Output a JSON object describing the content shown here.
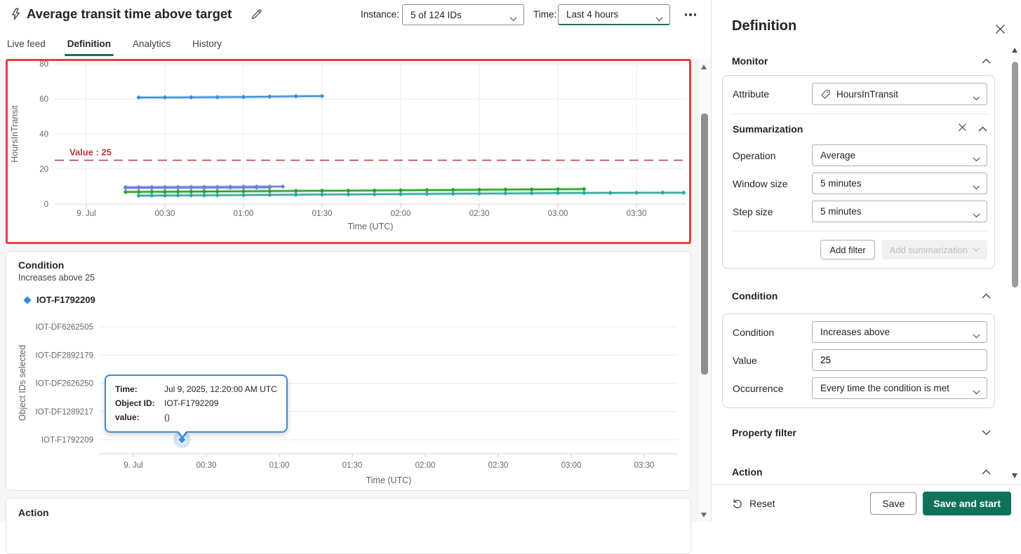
{
  "header": {
    "title": "Average transit time above target",
    "instance_label": "Instance:",
    "instance_value": "5 of 124 IDs",
    "time_label": "Time:",
    "time_value": "Last 4 hours"
  },
  "tabs": [
    {
      "label": "Live feed"
    },
    {
      "label": "Definition"
    },
    {
      "label": "Analytics"
    },
    {
      "label": "History"
    }
  ],
  "main": {
    "condition_card": {
      "title": "Condition",
      "subtitle": "Increases above 25",
      "legend_label": "IOT-F1792209",
      "tooltip": {
        "time_label": "Time:",
        "time_value": "Jul 9, 2025, 12:20:00 AM UTC",
        "object_label": "Object ID:",
        "object_value": "IOT-F1792209",
        "value_label": "value:",
        "value_value": "()"
      }
    },
    "action_card": {
      "title": "Action"
    }
  },
  "panel": {
    "title": "Definition",
    "monitor": {
      "title": "Monitor",
      "attribute_label": "Attribute",
      "attribute_value": "HoursInTransit"
    },
    "summarization": {
      "title": "Summarization",
      "operation_label": "Operation",
      "operation_value": "Average",
      "window_label": "Window size",
      "window_value": "5 minutes",
      "step_label": "Step size",
      "step_value": "5 minutes",
      "add_filter_label": "Add filter",
      "add_summarization_label": "Add summarization"
    },
    "condition": {
      "title": "Condition",
      "condition_label": "Condition",
      "condition_value": "Increases above",
      "value_label": "Value",
      "value_value": "25",
      "occurrence_label": "Occurrence",
      "occurrence_value": "Every time the condition is met"
    },
    "property_filter": {
      "title": "Property filter"
    },
    "action": {
      "title": "Action"
    },
    "footer": {
      "reset": "Reset",
      "save": "Save",
      "save_and_start": "Save and start"
    }
  },
  "colors": {
    "accent": "#11725c",
    "selection_border": "#e8403a",
    "threshold_red": "#b5383f",
    "tooltip_blue": "#3a8dd9"
  },
  "chart_data": [
    {
      "type": "line",
      "ylabel": "HoursInTransit",
      "xlabel": "Time (UTC)",
      "ylim": [
        0,
        80
      ],
      "y_ticks": [
        0,
        20,
        40,
        60,
        80
      ],
      "x_ticks": [
        {
          "minute": 0,
          "label": "9. Jul"
        },
        {
          "minute": 30,
          "label": "00:30"
        },
        {
          "minute": 60,
          "label": "01:00"
        },
        {
          "minute": 90,
          "label": "01:30"
        },
        {
          "minute": 120,
          "label": "02:00"
        },
        {
          "minute": 150,
          "label": "02:30"
        },
        {
          "minute": 180,
          "label": "03:00"
        },
        {
          "minute": 210,
          "label": "03:30"
        }
      ],
      "threshold": {
        "value": 25,
        "label": "Value : 25",
        "color": "#b5383f"
      },
      "series": [
        {
          "name": "series-purple",
          "color": "#9383d6",
          "points": [
            [
              15,
              9.2
            ],
            [
              20,
              9.2
            ],
            [
              25,
              9.2
            ],
            [
              30,
              9.25
            ],
            [
              35,
              9.25
            ],
            [
              40,
              9.3
            ],
            [
              45,
              9.3
            ],
            [
              50,
              9.35
            ],
            [
              55,
              9.35
            ],
            [
              60,
              9.4
            ],
            [
              65,
              9.4
            ],
            [
              70,
              9.45
            ]
          ]
        },
        {
          "name": "series-violet",
          "color": "#6b7dda",
          "points": [
            [
              15,
              9.6
            ],
            [
              20,
              9.6
            ],
            [
              25,
              9.65
            ],
            [
              30,
              9.65
            ],
            [
              35,
              9.7
            ],
            [
              40,
              9.7
            ],
            [
              45,
              9.75
            ],
            [
              50,
              9.75
            ],
            [
              55,
              9.8
            ],
            [
              60,
              9.85
            ],
            [
              65,
              9.9
            ],
            [
              70,
              9.95
            ],
            [
              75,
              10.0
            ]
          ]
        },
        {
          "name": "series-green",
          "color": "#21a121",
          "points": [
            [
              15,
              6.9
            ],
            [
              20,
              6.95
            ],
            [
              25,
              7.0
            ],
            [
              30,
              7.0
            ],
            [
              35,
              7.05
            ],
            [
              40,
              7.1
            ],
            [
              45,
              7.15
            ],
            [
              50,
              7.2
            ],
            [
              60,
              7.3
            ],
            [
              70,
              7.4
            ],
            [
              80,
              7.5
            ],
            [
              90,
              7.6
            ],
            [
              100,
              7.65
            ],
            [
              110,
              7.75
            ],
            [
              120,
              7.85
            ],
            [
              130,
              7.95
            ],
            [
              140,
              8.05
            ],
            [
              150,
              8.15
            ],
            [
              160,
              8.25
            ],
            [
              170,
              8.35
            ],
            [
              180,
              8.45
            ],
            [
              190,
              8.55
            ]
          ]
        },
        {
          "name": "series-teal",
          "color": "#2ba6a0",
          "points": [
            [
              20,
              4.8
            ],
            [
              25,
              4.85
            ],
            [
              30,
              4.9
            ],
            [
              35,
              4.95
            ],
            [
              40,
              5.0
            ],
            [
              45,
              5.0
            ],
            [
              50,
              5.05
            ],
            [
              60,
              5.15
            ],
            [
              70,
              5.25
            ],
            [
              80,
              5.35
            ],
            [
              90,
              5.45
            ],
            [
              100,
              5.5
            ],
            [
              110,
              5.6
            ],
            [
              120,
              5.7
            ],
            [
              130,
              5.8
            ],
            [
              140,
              5.9
            ],
            [
              150,
              6.0
            ],
            [
              160,
              6.1
            ],
            [
              170,
              6.2
            ],
            [
              180,
              6.3
            ],
            [
              190,
              6.35
            ],
            [
              200,
              6.4
            ],
            [
              210,
              6.45
            ],
            [
              220,
              6.5
            ],
            [
              228,
              6.5
            ]
          ]
        },
        {
          "name": "series-blue",
          "color": "#3a8dd9",
          "points": [
            [
              20,
              60.8
            ],
            [
              30,
              60.85
            ],
            [
              40,
              60.9
            ],
            [
              50,
              61.0
            ],
            [
              60,
              61.1
            ],
            [
              70,
              61.3
            ],
            [
              80,
              61.5
            ],
            [
              90,
              61.6
            ]
          ]
        }
      ]
    },
    {
      "type": "scatter",
      "ylabel": "Object IDs selected",
      "xlabel": "Time (UTC)",
      "categories": [
        "IOT-DF6262505",
        "IOT-DF2892179",
        "IOT-DF2626250",
        "IOT-DF1289217",
        "IOT-F1792209"
      ],
      "x_ticks": [
        {
          "minute": 0,
          "label": "9. Jul"
        },
        {
          "minute": 30,
          "label": "00:30"
        },
        {
          "minute": 60,
          "label": "01:00"
        },
        {
          "minute": 90,
          "label": "01:30"
        },
        {
          "minute": 120,
          "label": "02:00"
        },
        {
          "minute": 150,
          "label": "02:30"
        },
        {
          "minute": 180,
          "label": "03:00"
        },
        {
          "minute": 210,
          "label": "03:30"
        }
      ],
      "events": [
        {
          "category": "IOT-F1792209",
          "minute": 20,
          "value": "()",
          "color": "#3a8dd9"
        }
      ]
    }
  ]
}
